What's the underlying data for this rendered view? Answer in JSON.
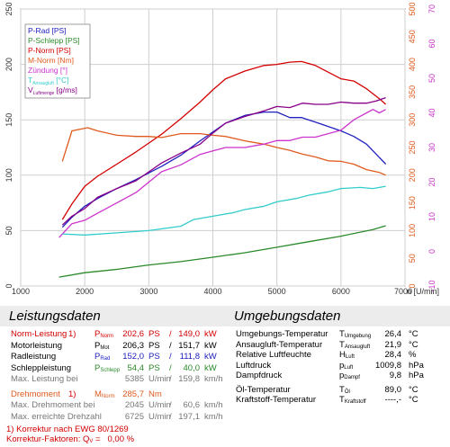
{
  "chart_data": {
    "type": "line",
    "x_axis": {
      "min": 1000,
      "max": 7000,
      "ticks": [
        "1000",
        "2000",
        "3000",
        "4000",
        "5000",
        "6000",
        "7000"
      ],
      "label": "n [U/min]"
    },
    "y_axes": {
      "left": {
        "min": 0,
        "max": 250,
        "ticks": [
          "0",
          "50",
          "100",
          "150",
          "200",
          "250"
        ]
      },
      "right_torque": {
        "min": 0,
        "max": 500,
        "ticks": [
          "0",
          "50",
          "100",
          "150",
          "200",
          "250",
          "300",
          "350",
          "400",
          "450",
          "500"
        ],
        "color": "#e05a1e"
      },
      "right_ignition": {
        "min": -10,
        "max": 70,
        "ticks": [
          "-10",
          "0",
          "10",
          "20",
          "30",
          "40",
          "50",
          "60",
          "70"
        ],
        "color": "#cc33cc"
      }
    },
    "legend": [
      {
        "text": "P-Rad [PS]",
        "color": "#2020c0"
      },
      {
        "text": "P-Schlepp [PS]",
        "color": "#2a8a2a"
      },
      {
        "text": "P-Norm [PS]",
        "color": "#d40000"
      },
      {
        "text": "M-Norm [Nm]",
        "color": "#e05a1e"
      },
      {
        "text": "Zündung [°]",
        "color": "#cc33cc"
      },
      {
        "text": "T",
        "sub": "Ansaugluft",
        "tail": " [°C]",
        "color": "#33cccc"
      },
      {
        "text": "V",
        "sub": "Luftmenge",
        "tail": " [g/ms]",
        "color": "#880088"
      }
    ],
    "series": [
      {
        "name": "P-Norm [PS]",
        "color": "#d40000",
        "axis": "left",
        "x": [
          1650,
          1800,
          2000,
          2200,
          2500,
          2800,
          3000,
          3200,
          3500,
          3800,
          4000,
          4200,
          4500,
          4800,
          5000,
          5200,
          5385,
          5600,
          5800,
          6000,
          6200,
          6400,
          6600,
          6700
        ],
        "y": [
          60,
          74,
          90,
          99,
          110,
          121,
          129,
          137,
          151,
          166,
          177,
          187,
          194,
          199,
          200,
          202,
          202.6,
          199,
          193,
          187,
          185,
          178,
          169,
          164
        ]
      },
      {
        "name": "P-Rad [PS]",
        "color": "#2020c0",
        "axis": "left",
        "x": [
          1650,
          1800,
          2000,
          2200,
          2500,
          2800,
          3000,
          3200,
          3500,
          3800,
          4000,
          4200,
          4500,
          4800,
          5000,
          5200,
          5385,
          5600,
          5800,
          6000,
          6200,
          6400,
          6600,
          6700
        ],
        "y": [
          53,
          62,
          72,
          79,
          88,
          96,
          102,
          108,
          118,
          131,
          139,
          147,
          154,
          157,
          157,
          152,
          152,
          148,
          144,
          140,
          135,
          128,
          116,
          110
        ]
      },
      {
        "name": "P-Schlepp [PS]",
        "color": "#2a8a2a",
        "axis": "left",
        "x": [
          1600,
          2000,
          2500,
          3000,
          3500,
          4000,
          4500,
          5000,
          5500,
          6000,
          6500,
          6700
        ],
        "y": [
          8,
          12,
          15,
          19,
          22,
          26,
          30,
          35,
          40,
          45,
          51,
          54.4
        ]
      },
      {
        "name": "M-Norm [Nm]",
        "color": "#e05a1e",
        "axis": "right_torque",
        "x": [
          1650,
          1800,
          2045,
          2200,
          2500,
          2800,
          3000,
          3200,
          3500,
          3800,
          4000,
          4200,
          4500,
          4800,
          5000,
          5200,
          5400,
          5600,
          5800,
          6000,
          6200,
          6400,
          6600,
          6700
        ],
        "y": [
          225,
          280,
          285.7,
          280,
          272,
          270,
          270,
          268,
          275,
          275,
          272,
          270,
          262,
          256,
          250,
          245,
          238,
          233,
          226,
          225,
          220,
          210,
          205,
          200
        ]
      },
      {
        "name": "Zündung [°]",
        "color": "#cc33cc",
        "axis": "right_ignition",
        "x": [
          1600,
          1700,
          1800,
          2000,
          2200,
          2500,
          2800,
          3000,
          3200,
          3500,
          3800,
          4000,
          4200,
          4500,
          4800,
          5000,
          5200,
          5400,
          5600,
          5800,
          6000,
          6200,
          6400,
          6500,
          6600,
          6700
        ],
        "y": [
          4,
          6,
          8,
          9,
          11,
          14,
          17,
          20,
          23,
          25,
          28,
          29,
          30,
          30,
          31,
          32,
          32,
          33,
          33,
          34,
          35,
          38,
          40,
          41,
          40,
          41
        ]
      },
      {
        "name": "T Ansaugluft [°C]",
        "color": "#33cccc",
        "axis": "left",
        "x": [
          1650,
          2000,
          2500,
          3000,
          3500,
          3700,
          4000,
          4300,
          4500,
          4800,
          5000,
          5300,
          5500,
          5800,
          6000,
          6300,
          6500,
          6700
        ],
        "y": [
          47,
          46,
          48,
          50,
          54,
          60,
          63,
          66,
          69,
          72,
          76,
          79,
          82,
          85,
          88,
          89,
          88,
          90
        ]
      },
      {
        "name": "V Luftmenge [g/ms]",
        "color": "#880088",
        "axis": "left",
        "x": [
          1650,
          1800,
          2000,
          2200,
          2500,
          2800,
          3000,
          3200,
          3500,
          3800,
          4000,
          4200,
          4500,
          4800,
          5000,
          5200,
          5400,
          5600,
          5800,
          6000,
          6200,
          6400,
          6550,
          6700
        ],
        "y": [
          55,
          63,
          70,
          80,
          88,
          95,
          103,
          111,
          120,
          128,
          138,
          147,
          153,
          158,
          162,
          161,
          165,
          164,
          164,
          166,
          165,
          165,
          167,
          170
        ]
      }
    ]
  },
  "leistung": {
    "title": "Leistungsdaten",
    "rows": [
      {
        "label": "Norm-Leistung",
        "fn": "1)",
        "sym": "P",
        "sub": "Norm",
        "v1": "202,6",
        "u1": "PS",
        "v2": "149,0",
        "u2": "kW",
        "cls": "red"
      },
      {
        "label": "Motorleistung",
        "sym": "P",
        "sub": "Mot",
        "v1": "206,3",
        "u1": "PS",
        "v2": "151,7",
        "u2": "kW",
        "cls": ""
      },
      {
        "label": "Radleistung",
        "sym": "P",
        "sub": "Rad",
        "v1": "152,0",
        "u1": "PS",
        "v2": "111,8",
        "u2": "kW",
        "cls": ""
      },
      {
        "label": "Schleppleistung",
        "sym": "P",
        "sub": "Schlepp",
        "v1": "54,4",
        "u1": "PS",
        "v2": "40,0",
        "u2": "kW",
        "cls": ""
      },
      {
        "label": "Max. Leistung bei",
        "sym": "",
        "sub": "",
        "v1": "5385",
        "u1": "U/min",
        "v2": "159,8",
        "u2": "km/h",
        "cls": "grey"
      },
      {
        "label": "Drehmoment",
        "fn": "1)",
        "sym": "M",
        "sub": "Norm",
        "v1": "285,7",
        "u1": "Nm",
        "v2": "",
        "u2": "",
        "cls": "orange"
      },
      {
        "label": "Max. Drehmoment bei",
        "sym": "",
        "sub": "",
        "v1": "2045",
        "u1": "U/min",
        "v2": "60,6",
        "u2": "km/h",
        "cls": "grey"
      },
      {
        "label": "Max. erreichte Drehzahl",
        "sym": "",
        "sub": "",
        "v1": "6725",
        "u1": "U/min",
        "v2": "197,1",
        "u2": "km/h",
        "cls": "grey"
      }
    ],
    "footnote1": "1) Korrektur nach EWG 80/1269",
    "footnote2_prefix": "Korrektur-Faktoren: Q",
    "footnote2_sub": "V",
    "footnote2_suffix": " =   0,00 %"
  },
  "umgebung": {
    "title": "Umgebungsdaten",
    "rows": [
      {
        "label": "Umgebungs-Temperatur",
        "sym": "T",
        "sub": "Umgebung",
        "value": "26,4",
        "unit": "°C"
      },
      {
        "label": "Ansaugluft-Temperatur",
        "sym": "T",
        "sub": "Ansaugluft",
        "value": "21,9",
        "unit": "°C"
      },
      {
        "label": "Relative Luftfeuchte",
        "sym": "H",
        "sub": "Luft",
        "value": "28,4",
        "unit": "%"
      },
      {
        "label": "Luftdruck",
        "sym": "p",
        "sub": "Luft",
        "value": "1009,8",
        "unit": "hPa"
      },
      {
        "label": "Dampfdruck",
        "sym": "p",
        "sub": "Dampf",
        "value": "9,8",
        "unit": "hPa"
      },
      {
        "label": "Öl-Temperatur",
        "sym": "T",
        "sub": "Öl",
        "value": "89,0",
        "unit": "°C"
      },
      {
        "label": "Kraftstoff-Temperatur",
        "sym": "T",
        "sub": "Kraftstoff",
        "value": "----,-",
        "unit": "°C"
      }
    ]
  }
}
